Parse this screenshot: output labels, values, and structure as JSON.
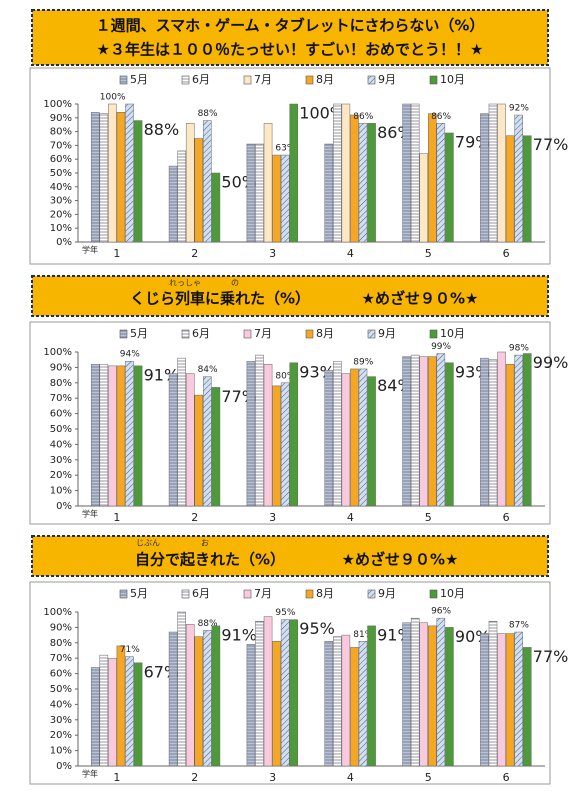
{
  "banners": [
    {
      "lines": [
        "１週間、スマホ・ゲーム・タブレットにさわらない（%）",
        "★３年生は１００％たっせい！すごい！おめでとう！！★"
      ]
    },
    {
      "lines": [
        "くじら列車に乗れた（%）",
        "★めざせ９０%★"
      ],
      "ruby": [
        "れっしゃ",
        "の"
      ]
    },
    {
      "lines": [
        "自分で起きれた（%）",
        "★めざせ９０%★"
      ],
      "ruby": [
        "じぶん",
        "お"
      ]
    }
  ],
  "chart_data": [
    {
      "type": "bar",
      "categories": [
        "1",
        "2",
        "3",
        "4",
        "5",
        "6"
      ],
      "x_label": "学年",
      "ylim": [
        0,
        100
      ],
      "yticks": [
        {
          "value": 0,
          "label": "0%"
        },
        {
          "value": 10,
          "label": "10%"
        },
        {
          "value": 20,
          "label": "20%"
        },
        {
          "value": 30,
          "label": "30%"
        },
        {
          "value": 40,
          "label": "40%"
        },
        {
          "value": 50,
          "label": "50%"
        },
        {
          "value": 60,
          "label": "60%"
        },
        {
          "value": 70,
          "label": "70%"
        },
        {
          "value": 80,
          "label": "80%"
        },
        {
          "value": 90,
          "label": "90%"
        },
        {
          "value": 100,
          "label": "100%"
        }
      ],
      "series": [
        {
          "name": "5月",
          "color": "#b7c3d9",
          "pattern": "horizontal",
          "values": [
            94,
            55,
            71,
            71,
            100,
            93
          ]
        },
        {
          "name": "6月",
          "color": "#ffffff",
          "pattern": "horizontal",
          "values": [
            93,
            66,
            71,
            100,
            100,
            100
          ]
        },
        {
          "name": "7月",
          "color": "#fde7c4",
          "values": [
            100,
            86,
            86,
            100,
            64,
            100
          ],
          "value_labels": [
            "100%",
            null,
            null,
            null,
            null,
            null
          ]
        },
        {
          "name": "8月",
          "color": "#f5a623",
          "values": [
            94,
            75,
            63,
            92,
            93,
            77
          ]
        },
        {
          "name": "9月",
          "color": "#cfe0f3",
          "pattern": "diagonal",
          "values": [
            100,
            88,
            63,
            86,
            86,
            92
          ],
          "value_labels": [
            null,
            "88%",
            "63%",
            "86%",
            "86%",
            "92%"
          ]
        },
        {
          "name": "10月",
          "color": "#4e9a3a",
          "values": [
            88,
            50,
            100,
            86,
            79,
            77
          ],
          "value_labels": [
            "88%",
            "50%",
            "100%",
            "86%",
            "79%",
            "77%"
          ]
        }
      ]
    },
    {
      "type": "bar",
      "categories": [
        "1",
        "2",
        "3",
        "4",
        "5",
        "6"
      ],
      "x_label": "学年",
      "ylim": [
        0,
        100
      ],
      "yticks": [
        {
          "value": 0,
          "label": "0%"
        },
        {
          "value": 10,
          "label": "10%"
        },
        {
          "value": 20,
          "label": "20%"
        },
        {
          "value": 30,
          "label": "30%"
        },
        {
          "value": 40,
          "label": "40%"
        },
        {
          "value": 50,
          "label": "50%"
        },
        {
          "value": 60,
          "label": "60%"
        },
        {
          "value": 70,
          "label": "70%"
        },
        {
          "value": 80,
          "label": "80%"
        },
        {
          "value": 90,
          "label": "90%"
        },
        {
          "value": 100,
          "label": "100%"
        }
      ],
      "series": [
        {
          "name": "5月",
          "color": "#b7c3d9",
          "pattern": "horizontal",
          "values": [
            92,
            86,
            94,
            88,
            97,
            96
          ]
        },
        {
          "name": "6月",
          "color": "#ffffff",
          "pattern": "horizontal",
          "values": [
            92,
            96,
            98,
            94,
            98,
            95
          ]
        },
        {
          "name": "7月",
          "color": "#f9c9de",
          "values": [
            91,
            86,
            92,
            86,
            97,
            100
          ]
        },
        {
          "name": "8月",
          "color": "#f5a623",
          "values": [
            91,
            72,
            78,
            89,
            97,
            92
          ]
        },
        {
          "name": "9月",
          "color": "#cfe0f3",
          "pattern": "diagonal",
          "values": [
            94,
            84,
            80,
            89,
            99,
            98
          ],
          "value_labels": [
            "94%",
            "84%",
            "80%",
            "89%",
            "99%",
            "98%"
          ]
        },
        {
          "name": "10月",
          "color": "#4e9a3a",
          "values": [
            91,
            77,
            93,
            84,
            93,
            99
          ],
          "value_labels": [
            "91%",
            "77%",
            "93%",
            "84%",
            "93%",
            "99%"
          ]
        }
      ]
    },
    {
      "type": "bar",
      "categories": [
        "1",
        "2",
        "3",
        "4",
        "5",
        "6"
      ],
      "x_label": "学年",
      "ylim": [
        0,
        100
      ],
      "yticks": [
        {
          "value": 0,
          "label": "0%"
        },
        {
          "value": 10,
          "label": "10%"
        },
        {
          "value": 20,
          "label": "20%"
        },
        {
          "value": 30,
          "label": "30%"
        },
        {
          "value": 40,
          "label": "40%"
        },
        {
          "value": 50,
          "label": "50%"
        },
        {
          "value": 60,
          "label": "60%"
        },
        {
          "value": 70,
          "label": "70%"
        },
        {
          "value": 80,
          "label": "80%"
        },
        {
          "value": 90,
          "label": "90%"
        },
        {
          "value": 100,
          "label": "100%"
        }
      ],
      "series": [
        {
          "name": "5月",
          "color": "#b7c3d9",
          "pattern": "horizontal",
          "values": [
            64,
            87,
            79,
            81,
            93,
            86
          ]
        },
        {
          "name": "6月",
          "color": "#ffffff",
          "pattern": "horizontal",
          "values": [
            72,
            100,
            94,
            84,
            96,
            94
          ]
        },
        {
          "name": "7月",
          "color": "#f9c9de",
          "values": [
            70,
            92,
            97,
            85,
            93,
            86
          ]
        },
        {
          "name": "8月",
          "color": "#f5a623",
          "values": [
            78,
            84,
            81,
            77,
            91,
            86
          ]
        },
        {
          "name": "9月",
          "color": "#cfe0f3",
          "pattern": "diagonal",
          "values": [
            71,
            88,
            95,
            81,
            96,
            87
          ],
          "value_labels": [
            "71%",
            "88%",
            "95%",
            "81%",
            "96%",
            "87%"
          ]
        },
        {
          "name": "10月",
          "color": "#4e9a3a",
          "values": [
            67,
            91,
            95,
            91,
            90,
            77
          ],
          "value_labels": [
            "67%",
            "91%",
            "95%",
            "91%",
            "90%",
            "77%"
          ],
          "label_colors": [
            "#e53935",
            null,
            null,
            null,
            null,
            "#e53935"
          ]
        }
      ]
    }
  ]
}
